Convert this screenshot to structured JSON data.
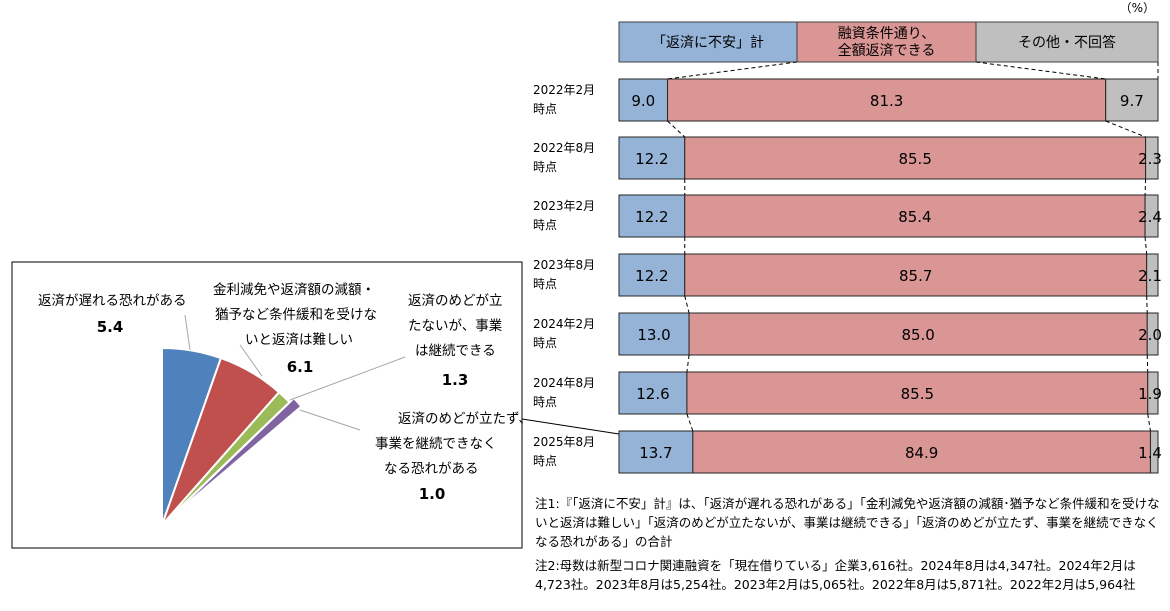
{
  "chart_data": [
    {
      "type": "bar",
      "orientation": "horizontal-stacked-100",
      "unit_label": "（%）",
      "categories": [
        [
          "2022年2月",
          "時点"
        ],
        [
          "2022年8月",
          "時点"
        ],
        [
          "2023年2月",
          "時点"
        ],
        [
          "2023年8月",
          "時点"
        ],
        [
          "2024年2月",
          "時点"
        ],
        [
          "2024年8月",
          "時点"
        ],
        [
          "2025年8月",
          "時点"
        ]
      ],
      "series": [
        {
          "name": "「返済に不安」計",
          "color": "#95b3d7",
          "values": [
            9.0,
            12.2,
            12.2,
            12.2,
            13.0,
            12.6,
            13.7
          ]
        },
        {
          "name": "融資条件通り、全額返済できる",
          "name_lines": [
            "融資条件通り、",
            "全額返済できる"
          ],
          "color": "#da9694",
          "values": [
            81.3,
            85.5,
            85.4,
            85.7,
            85.0,
            85.5,
            84.9
          ]
        },
        {
          "name": "その他・不回答",
          "color": "#bfbfbf",
          "values": [
            9.7,
            2.3,
            2.4,
            2.1,
            2.0,
            1.9,
            1.4
          ]
        }
      ],
      "legend": "top"
    },
    {
      "type": "pie",
      "partial": true,
      "slices": [
        {
          "label_lines": [
            "返済が遅れる恐れがある"
          ],
          "value": 5.4,
          "color": "#4f81bd"
        },
        {
          "label_lines": [
            "金利減免や返済額の減額・",
            "猶予など条件緩和を受けな",
            "いと返済は難しい"
          ],
          "value": 6.1,
          "color": "#c0504d"
        },
        {
          "label_lines": [
            "返済のめどが立",
            "たないが、事業",
            "は継続できる"
          ],
          "value": 1.3,
          "color": "#9bbb59"
        },
        {
          "label_lines": [
            "返済のめどが立たず、",
            "事業を継続できなく",
            "なる恐れがある"
          ],
          "value": 1.0,
          "color": "#8064a2"
        }
      ]
    }
  ],
  "notes": {
    "note1": "注1:『「返済に不安」計』は、「返済が遅れる恐れがある」「金利減免や返済額の減額･猶予など条件緩和を受けないと返済は難しい」「返済のめどが立たないが、事業は継続できる」「返済のめどが立たず、事業を継続できなくなる恐れがある」の合計",
    "note2": "注2:母数は新型コロナ関連融資を「現在借りている」企業3,616社。2024年8月は4,347社。2024年2月は4,723社。2023年8月は5,254社。2023年2月は5,065社。2022年8月は5,871社。2022年2月は5,964社"
  }
}
